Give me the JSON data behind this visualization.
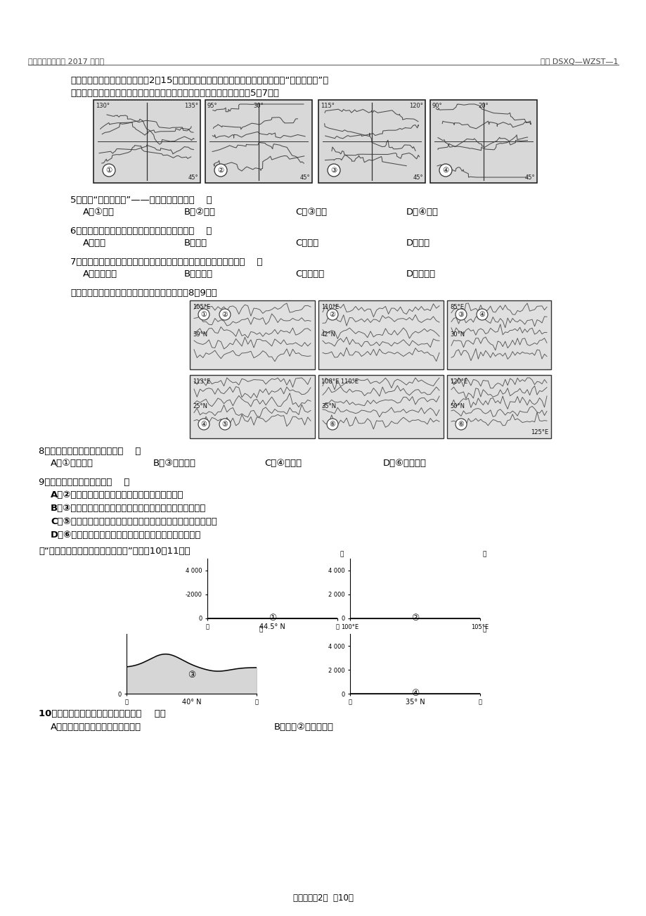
{
  "page_background": "#ffffff",
  "header_left": "仁寿一中南校区系 2017 级月考",
  "header_right": "编号 DSXQ—WZST—1",
  "footer_text": "文综试题第2页  全10页",
  "intro_line1": "某游客在日记中写到：北京时间2时15分，旭日的霖光就撒满了乌苏镇。在这有我国“东方第一镇”之",
  "intro_line2": "美誉的边境小镇的市场上，早已聚集了大量的相邻国家的商人。据此回答5～7题。",
  "q5": "5．我国“东方第一镇”——乌苏镇位于上面（    ）",
  "q5_options": [
    "A．①图中",
    "B．②图中",
    "C．③图中",
    "D．④图中"
  ],
  "q6": "6．依据日记内容判断，此游客旅游时间选择在（    ）",
  "q6_options": [
    "A．春季",
    "B．夏季",
    "C．秋季",
    "D．冬季"
  ],
  "q7": "7．小镇上生活的部分少数民族，在对外贸易中最具有语言优势的是（    ）",
  "q7_options": [
    "A．俄罗斯族",
    "B．赫哲族",
    "C．朝鲜族",
    "D．蒙古族"
  ],
  "divider_text": "下列山脉都是我国重要的地理分界线，读图回答8～9题。",
  "q8": "8．对图中山脉的判断正确的是（    ）",
  "q8_options": [
    "A．①是六盘山",
    "B．③是昆仑山",
    "C．④是南岭",
    "D．⑥是长白山"
  ],
  "q9": "9．山脉分界线，正确的是（    ）",
  "q9_A": "A．②山脉是内蒙古高原与黄土高原分界线的一部分",
  "q9_B": "B．③山脉是新疆维吾尔自治区与西藏自治区分界线的一部分",
  "q9_C": "C．⑤山脉是亚热带常绿硬叶林与温带落叶阔叶林分界线的一部分",
  "q9_D": "D．⑥山脉是地势第二级阶梯与第三级阶梯分界线的一部分",
  "divider_text2": "读“我国四大盆地地地形剥面示意图”，回答10～11题。",
  "q10": "10．关于四大盆地位置判断正确的是（    ）。",
  "q10_A": "A．都位于我国地势的第二级阶梯上",
  "q10_B": "B．盆地②位于季风区"
}
